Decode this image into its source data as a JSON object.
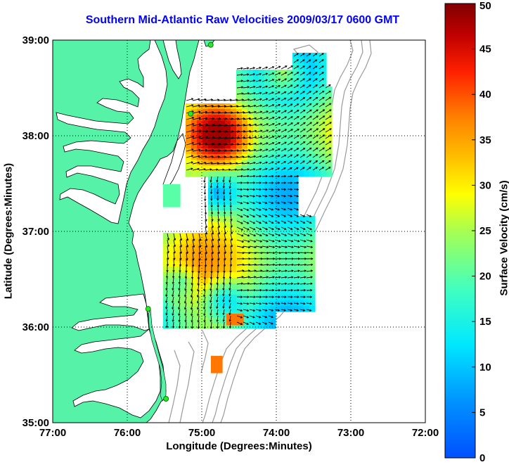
{
  "title": "Southern Mid-Atlantic Raw Velocities 2009/03/17 0600 GMT",
  "map": {
    "xlabel": "Longitude (Degrees:Minutes)",
    "ylabel": "Latitude (Degrees:Minutes)",
    "x_ticks": [
      "77:00",
      "76:00",
      "75:00",
      "74:00",
      "73:00",
      "72:00"
    ],
    "y_ticks": [
      "39:00",
      "38:00",
      "37:00",
      "36:00",
      "35:00"
    ],
    "lon_range": [
      -77,
      -72
    ],
    "lat_range": [
      35,
      39
    ],
    "grid": "dotted",
    "colors": {
      "land": "#55f2a8",
      "ocean": "#ffffff",
      "coast": "#000000",
      "bathymetry": "#9a9a9a",
      "stations": "#22ee22"
    }
  },
  "colorbar": {
    "label": "Surface Velocity (cm/s)",
    "ticks": [
      "0",
      "5",
      "10",
      "15",
      "20",
      "25",
      "30",
      "35",
      "40",
      "45",
      "50"
    ],
    "range": [
      0,
      50
    ],
    "colormap": "jet"
  },
  "stations": [
    {
      "lon": -74.88,
      "lat": 38.95
    },
    {
      "lon": -75.15,
      "lat": 38.23
    },
    {
      "lon": -75.72,
      "lat": 36.19
    },
    {
      "lon": -75.48,
      "lat": 35.25
    }
  ]
}
